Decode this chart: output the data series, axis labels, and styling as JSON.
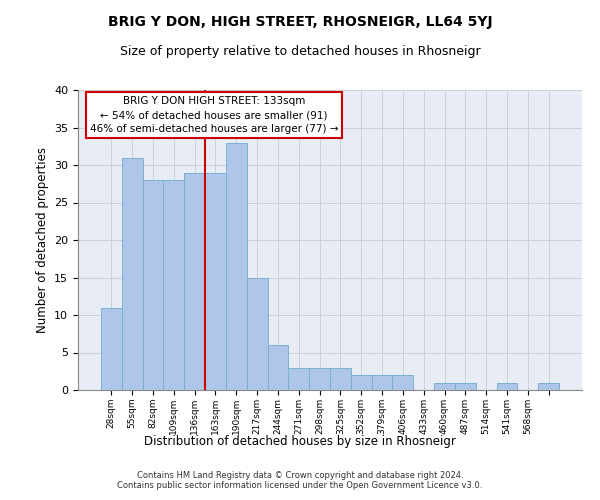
{
  "title": "BRIG Y DON, HIGH STREET, RHOSNEIGR, LL64 5YJ",
  "subtitle": "Size of property relative to detached houses in Rhosneigr",
  "xlabel": "Distribution of detached houses by size in Rhosneigr",
  "ylabel": "Number of detached properties",
  "bar_values": [
    11,
    31,
    28,
    28,
    29,
    29,
    33,
    15,
    6,
    3,
    3,
    3,
    2,
    2,
    2,
    0,
    1,
    1,
    0,
    1,
    0,
    1
  ],
  "x_labels": [
    "28sqm",
    "55sqm",
    "82sqm",
    "109sqm",
    "136sqm",
    "163sqm",
    "190sqm",
    "217sqm",
    "244sqm",
    "271sqm",
    "298sqm",
    "325sqm",
    "352sqm",
    "379sqm",
    "406sqm",
    "433sqm",
    "460sqm",
    "487sqm",
    "514sqm",
    "541sqm",
    "568sqm",
    ""
  ],
  "bar_color": "#aec6e8",
  "bar_edge_color": "#7bafd4",
  "grid_color": "#c8d0dc",
  "plot_bg_color": "#e8edf5",
  "vline_position": 4.5,
  "vline_color": "#cc0000",
  "annotation_line1": "BRIG Y DON HIGH STREET: 133sqm",
  "annotation_line2": "← 54% of detached houses are smaller (91)",
  "annotation_line3": "46% of semi-detached houses are larger (77) →",
  "annotation_box_edge": "#cc0000",
  "footer": "Contains HM Land Registry data © Crown copyright and database right 2024.\nContains public sector information licensed under the Open Government Licence v3.0.",
  "ylim_max": 40,
  "yticks": [
    0,
    5,
    10,
    15,
    20,
    25,
    30,
    35,
    40
  ]
}
